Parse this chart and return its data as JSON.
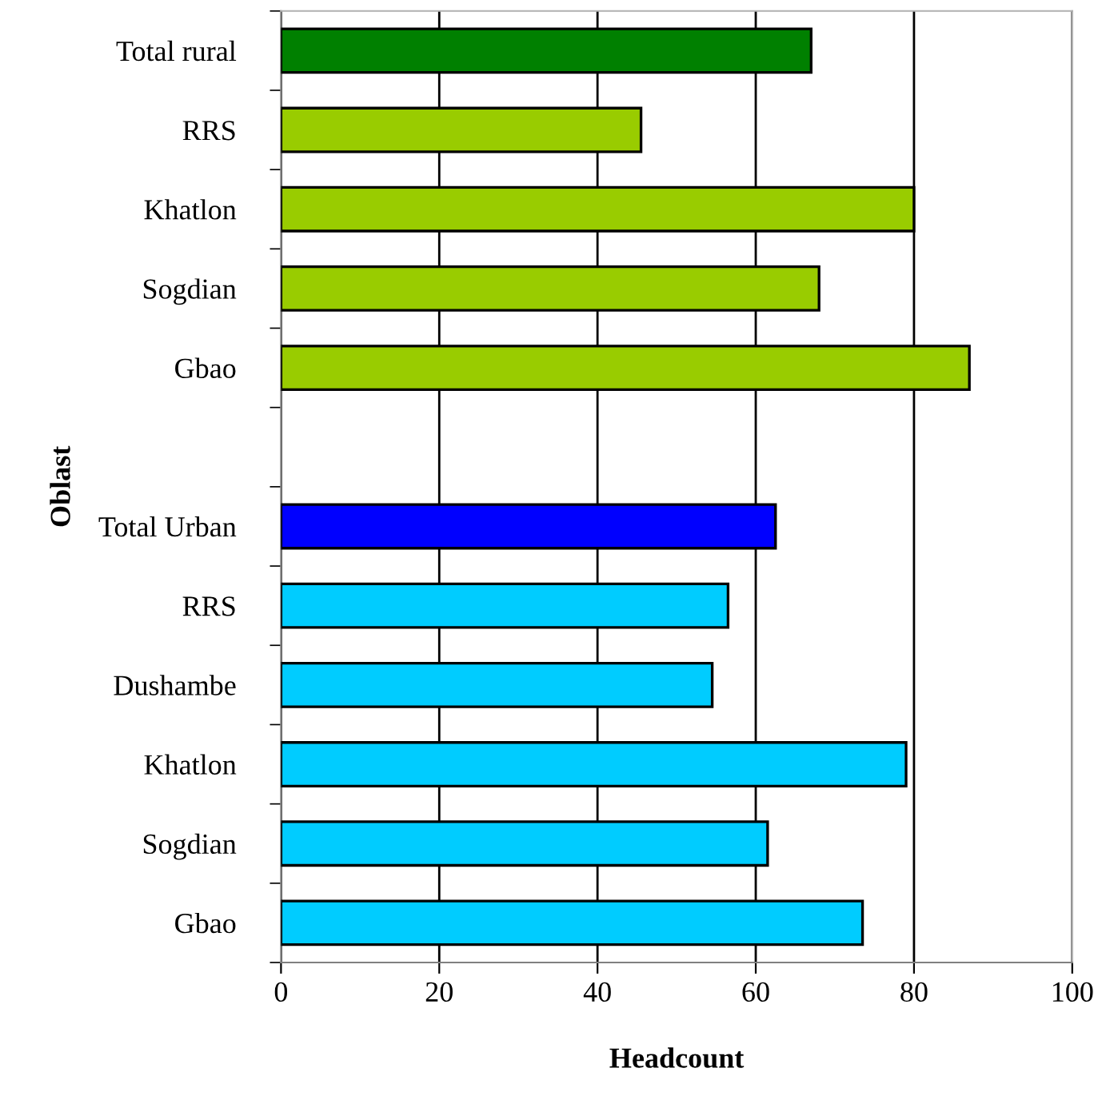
{
  "chart_data": {
    "type": "bar",
    "orientation": "horizontal",
    "xlabel": "Headcount",
    "ylabel": "Oblast",
    "categories": [
      "Total rural",
      "RRS",
      "Khatlon",
      "Sogdian",
      "Gbao",
      null,
      "Total Urban",
      "RRS",
      "Dushambe",
      "Khatlon",
      "Sogdian",
      "Gbao"
    ],
    "values": [
      67,
      45.5,
      80,
      68,
      87,
      null,
      62.5,
      56.5,
      54.5,
      79,
      61.5,
      73.5
    ],
    "colors": [
      "#008000",
      "#99cc00",
      "#99cc00",
      "#99cc00",
      "#99cc00",
      "#99cc00",
      "#0000ff",
      "#00ccff",
      "#00ccff",
      "#00ccff",
      "#00ccff",
      "#00ccff"
    ],
    "xlim": [
      0,
      100
    ],
    "xticks": [
      0,
      20,
      40,
      60,
      80,
      100
    ],
    "grid": "x",
    "legend": false
  }
}
